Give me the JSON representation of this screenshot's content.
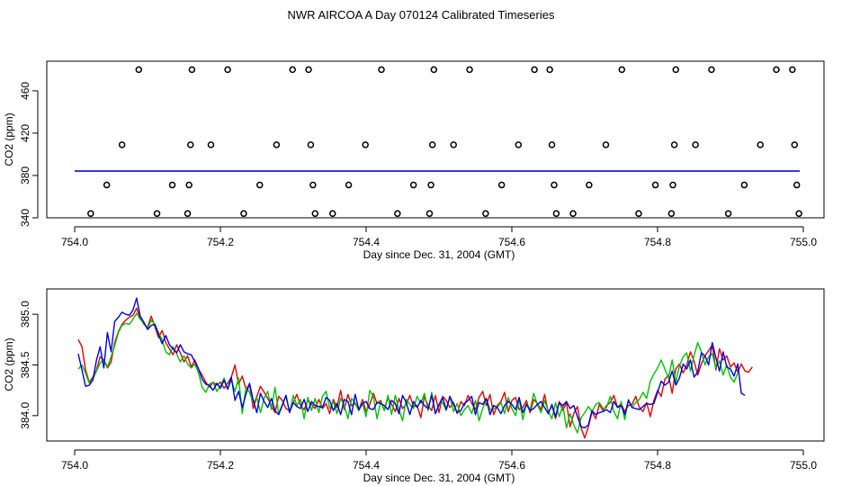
{
  "title": "NWR AIRCOA A  Day 070124  Calibrated Timeseries",
  "colors": {
    "red": "#e60000",
    "green": "#00c000",
    "blue": "#0000e0",
    "cyan": "#00b0b0",
    "points": "#000000"
  },
  "chart_data": [
    {
      "type": "scatter",
      "title": "",
      "xlabel": "Day since Dec. 31, 2004 (GMT)",
      "ylabel": "CO2 (ppm)",
      "xlim": [
        754.0,
        755.0
      ],
      "ylim": [
        340,
        488
      ],
      "xticks": [
        "754.0",
        "754.2",
        "754.4",
        "754.6",
        "754.8",
        "755.0"
      ],
      "yticks": [
        "340",
        "380",
        "420",
        "460"
      ],
      "baseline_value": 384.2,
      "points": [
        [
          754.022,
          344
        ],
        [
          754.044,
          371
        ],
        [
          754.065,
          409
        ],
        [
          754.088,
          480
        ],
        [
          754.113,
          344
        ],
        [
          754.134,
          371
        ],
        [
          754.155,
          344
        ],
        [
          754.157,
          371
        ],
        [
          754.159,
          409
        ],
        [
          754.161,
          480
        ],
        [
          754.187,
          409
        ],
        [
          754.21,
          480
        ],
        [
          754.232,
          344
        ],
        [
          754.254,
          371
        ],
        [
          754.277,
          409
        ],
        [
          754.299,
          480
        ],
        [
          754.321,
          480
        ],
        [
          754.324,
          409
        ],
        [
          754.327,
          371
        ],
        [
          754.33,
          344
        ],
        [
          754.354,
          344
        ],
        [
          754.376,
          371
        ],
        [
          754.399,
          409
        ],
        [
          754.421,
          480
        ],
        [
          754.443,
          344
        ],
        [
          754.465,
          371
        ],
        [
          754.487,
          344
        ],
        [
          754.489,
          371
        ],
        [
          754.491,
          409
        ],
        [
          754.493,
          480
        ],
        [
          754.52,
          409
        ],
        [
          754.542,
          480
        ],
        [
          754.564,
          344
        ],
        [
          754.586,
          371
        ],
        [
          754.609,
          409
        ],
        [
          754.631,
          480
        ],
        [
          754.652,
          480
        ],
        [
          754.655,
          409
        ],
        [
          754.658,
          371
        ],
        [
          754.661,
          344
        ],
        [
          754.684,
          344
        ],
        [
          754.706,
          371
        ],
        [
          754.729,
          409
        ],
        [
          754.751,
          480
        ],
        [
          754.774,
          344
        ],
        [
          754.797,
          371
        ],
        [
          754.819,
          344
        ],
        [
          754.821,
          371
        ],
        [
          754.823,
          409
        ],
        [
          754.825,
          480
        ],
        [
          754.852,
          409
        ],
        [
          754.874,
          480
        ],
        [
          754.897,
          344
        ],
        [
          754.919,
          371
        ],
        [
          754.941,
          409
        ],
        [
          754.963,
          480
        ],
        [
          754.985,
          480
        ],
        [
          754.988,
          409
        ],
        [
          754.991,
          371
        ],
        [
          754.994,
          344
        ]
      ]
    },
    {
      "type": "line",
      "title": "",
      "xlabel": "Day since Dec. 31, 2004 (GMT)",
      "ylabel": "CO2 (ppm)",
      "xlim": [
        754.0,
        755.0
      ],
      "ylim": [
        383.75,
        385.25
      ],
      "xticks": [
        "754.0",
        "754.2",
        "754.4",
        "754.6",
        "754.8",
        "755.0"
      ],
      "yticks": [
        "384.0",
        "384.5",
        "385.0"
      ],
      "x_start": 754.005,
      "x_step": 0.005,
      "series": [
        {
          "name": "red",
          "values": [
            384.75,
            384.68,
            384.45,
            384.33,
            384.38,
            384.45,
            384.58,
            384.55,
            384.47,
            384.53,
            384.72,
            384.83,
            384.9,
            384.94,
            384.97,
            384.99,
            385.06,
            384.96,
            384.9,
            384.87,
            384.98,
            384.88,
            384.77,
            384.84,
            384.72,
            384.66,
            384.6,
            384.7,
            384.62,
            384.53,
            384.59,
            384.48,
            384.55,
            384.46,
            384.4,
            384.33,
            384.28,
            384.33,
            384.3,
            384.33,
            384.27,
            384.32,
            384.38,
            384.5,
            384.31,
            384.39,
            384.26,
            384.31,
            384.07,
            384.19,
            384.29,
            384.23,
            384.17,
            384.1,
            384.03,
            384.19,
            384.15,
            384.07,
            384.05,
            384.13,
            384.21,
            384.1,
            384.06,
            384.15,
            384.11,
            384.07,
            384.16,
            384.07,
            384.12,
            384.02,
            384.16,
            384.08,
            384.25,
            384.06,
            384.21,
            384.1,
            384.12,
            384.05,
            384.16,
            384.04,
            384.11,
            384.22,
            384.12,
            384.15,
            384.05,
            384.18,
            384.11,
            384.04,
            384.17,
            384.07,
            384.11,
            384.2,
            384.09,
            384.1,
            383.98,
            384.19,
            384.1,
            384.05,
            384.2,
            384.03,
            384.19,
            384.15,
            384.08,
            384.13,
            384.02,
            384.14,
            384.1,
            384.2,
            384.12,
            384.06,
            384.18,
            384.24,
            384.1,
            384.21,
            384.01,
            384.1,
            384.14,
            384.23,
            384.04,
            384.15,
            384.18,
            384.06,
            384.08,
            384.15,
            384.03,
            384.16,
            384.12,
            384.06,
            384.21,
            384.03,
            384.1,
            383.97,
            384.14,
            384.05,
            384.13,
            383.89,
            384.02,
            384.09,
            383.88,
            383.78,
            383.89,
            384.04,
            383.97,
            384.11,
            384.05,
            384.1,
            384.13,
            384.2,
            384.08,
            384.12,
            384.04,
            384.1,
            384.11,
            384.19,
            384.08,
            384.04,
            384.13,
            383.99,
            384.15,
            384.25,
            384.19,
            384.36,
            384.4,
            384.22,
            384.46,
            384.51,
            384.42,
            384.5,
            384.63,
            384.54,
            384.4,
            384.51,
            384.59,
            384.64,
            384.7,
            384.45,
            384.66,
            384.55,
            384.59,
            384.48,
            384.52,
            384.43,
            384.51,
            384.44,
            384.43,
            384.48
          ]
        },
        {
          "name": "green",
          "values": [
            384.46,
            384.5,
            384.42,
            384.32,
            384.36,
            384.44,
            384.52,
            384.55,
            384.48,
            384.58,
            384.69,
            384.82,
            384.89,
            384.91,
            384.9,
            384.95,
            385.01,
            384.95,
            384.91,
            384.86,
            384.94,
            384.9,
            384.82,
            384.75,
            384.63,
            384.6,
            384.68,
            384.61,
            384.53,
            384.59,
            384.51,
            384.47,
            384.51,
            384.42,
            384.28,
            384.23,
            384.31,
            384.33,
            384.24,
            384.29,
            384.37,
            384.26,
            384.35,
            384.24,
            384.37,
            384.02,
            384.28,
            384.23,
            384.13,
            384.18,
            384.03,
            384.17,
            384.24,
            384.06,
            384.28,
            384.02,
            384.11,
            384.2,
            384.03,
            384.2,
            384.1,
            384.16,
            383.97,
            384.18,
            384.05,
            384.17,
            384.03,
            384.19,
            384.24,
            384.07,
            384.14,
            384.02,
            384.17,
            384.1,
            383.97,
            384.17,
            384.13,
            384.05,
            384.12,
            383.99,
            384.25,
            384.19,
            383.97,
            384.14,
            384.05,
            384.2,
            384.01,
            384.2,
            384.06,
            383.95,
            384.16,
            384.11,
            384.07,
            384.19,
            384.12,
            384.22,
            384.05,
            384.23,
            384.02,
            384.1,
            384.13,
            384.05,
            384.19,
            384.04,
            384.12,
            384.0,
            384.06,
            384.1,
            384.02,
            384.15,
            383.95,
            384.07,
            384.17,
            384.06,
            384.07,
            384.08,
            384.13,
            384.02,
            384.18,
            384.07,
            384.0,
            384.16,
            383.96,
            384.12,
            384.06,
            384.22,
            384.11,
            384.03,
            384.15,
            384.04,
            383.97,
            384.13,
            383.99,
            384.1,
            383.88,
            384.02,
            383.91,
            383.83,
            383.98,
            384.03,
            384.09,
            384.04,
            384.11,
            384.13,
            384.07,
            384.08,
            384.19,
            384.04,
            383.97,
            384.14,
            383.96,
            384.16,
            384.08,
            384.13,
            384.16,
            384.23,
            384.17,
            384.34,
            384.41,
            384.47,
            384.55,
            384.46,
            384.37,
            384.55,
            384.33,
            384.49,
            384.58,
            384.62,
            384.44,
            384.59,
            384.72,
            384.63,
            384.5,
            384.58,
            384.61,
            384.47,
            384.54,
            384.4,
            384.5,
            384.38,
            384.33,
            384.42
          ]
        },
        {
          "name": "blue",
          "values": [
            384.61,
            384.45,
            384.29,
            384.3,
            384.35,
            384.55,
            384.68,
            384.47,
            384.82,
            384.63,
            384.93,
            384.97,
            385.02,
            385.0,
            384.99,
            385.04,
            385.16,
            384.98,
            384.92,
            384.85,
            384.89,
            384.9,
            384.8,
            384.71,
            384.79,
            384.7,
            384.66,
            384.62,
            384.7,
            384.63,
            384.61,
            384.6,
            384.53,
            384.46,
            384.36,
            384.31,
            384.3,
            384.25,
            384.32,
            384.27,
            384.35,
            384.26,
            384.38,
            384.15,
            384.24,
            384.08,
            384.21,
            384.32,
            384.15,
            384.03,
            384.22,
            384.14,
            384.08,
            384.17,
            384.05,
            384.01,
            384.1,
            384.2,
            384.03,
            384.13,
            384.09,
            384.07,
            384.16,
            384.04,
            384.14,
            384.1,
            384.09,
            384.08,
            384.18,
            384.15,
            384.05,
            384.12,
            384.01,
            384.16,
            384.14,
            384.01,
            384.21,
            384.06,
            384.12,
            384.14,
            384.07,
            384.06,
            384.13,
            384.12,
            384.1,
            384.06,
            384.15,
            384.12,
            384.02,
            384.2,
            384.13,
            384.01,
            384.14,
            384.08,
            384.15,
            384.1,
            384.07,
            384.2,
            384.02,
            384.11,
            384.18,
            384.06,
            384.19,
            384.11,
            384.03,
            384.05,
            384.12,
            384.15,
            384.19,
            384.01,
            384.13,
            384.11,
            384.17,
            384.01,
            384.1,
            384.08,
            384.02,
            384.1,
            384.14,
            384.11,
            384.06,
            384.18,
            384.03,
            384.11,
            384.05,
            384.07,
            384.11,
            384.14,
            384.08,
            384.02,
            384.11,
            383.99,
            384.13,
            384.1,
            384.14,
            384.07,
            384.1,
            383.99,
            383.89,
            383.88,
            383.91,
            384.05,
            384.01,
            384.03,
            384.04,
            384.06,
            384.03,
            384.14,
            384.08,
            384.1,
            384.01,
            384.15,
            384.08,
            384.07,
            384.06,
            384.09,
            384.12,
            384.11,
            384.12,
            384.23,
            384.34,
            384.3,
            384.33,
            384.44,
            384.3,
            384.37,
            384.51,
            384.46,
            384.55,
            384.38,
            384.43,
            384.62,
            384.59,
            384.5,
            384.72,
            384.57,
            384.44,
            384.63,
            384.48,
            384.46,
            384.39,
            384.51,
            384.22,
            384.2
          ]
        }
      ]
    }
  ]
}
